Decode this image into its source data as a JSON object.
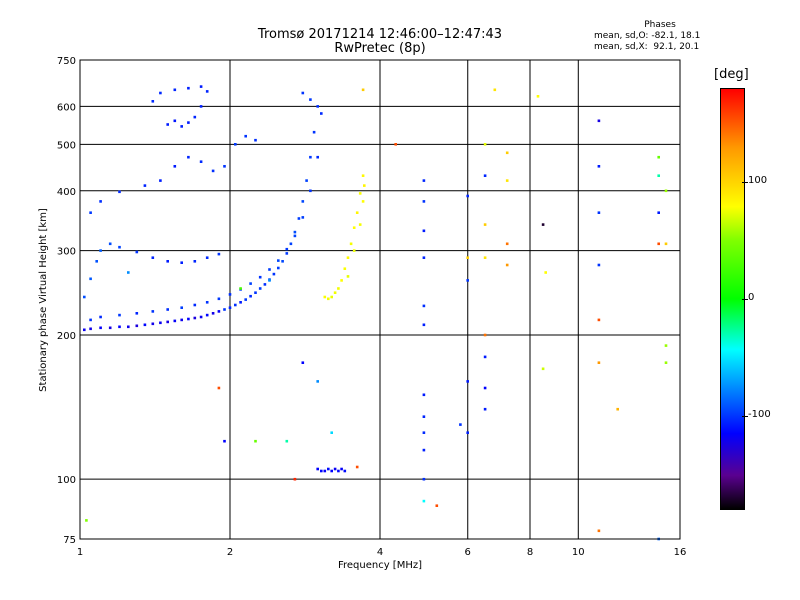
{
  "header": {
    "title_line1": "Tromsø 20171214 12:46:00–12:47:43",
    "title_line2": "RwPretec (8p)",
    "phases_label": "Phases",
    "stats_o": "mean, sd,O: -82.1, 18.1",
    "stats_x": "mean, sd,X:  92.1, 20.1"
  },
  "colorbar": {
    "unit": "[deg]",
    "ticks": [
      "100",
      "0",
      "-100"
    ],
    "tick_values": [
      100,
      0,
      -100
    ],
    "range": [
      -180,
      180
    ]
  },
  "chart_data": {
    "type": "scatter",
    "title": "Tromsø 20171214 12:46:00–12:47:43",
    "subtitle": "RwPretec (8p)",
    "xlabel": "Frequency [MHz]",
    "ylabel": "Stationary phase Virtual Height [km]",
    "xscale": "log",
    "yscale": "log",
    "xlim": [
      1,
      16
    ],
    "ylim": [
      75,
      750
    ],
    "xticks": [
      1,
      2,
      4,
      6,
      8,
      10,
      16
    ],
    "xtick_labels": [
      "1",
      "2",
      "4",
      "6",
      "8",
      "10",
      "16"
    ],
    "yticks": [
      75,
      100,
      200,
      300,
      400,
      500,
      600,
      750
    ],
    "ytick_labels": [
      "75",
      "100",
      "200",
      "300",
      "400",
      "500",
      "600",
      "750"
    ],
    "grid": true,
    "color_by": "phase (deg)",
    "series": [
      {
        "points": [
          [
            1.02,
            205,
            -115
          ],
          [
            1.05,
            206,
            -118
          ],
          [
            1.1,
            207,
            -112
          ],
          [
            1.15,
            207,
            -120
          ],
          [
            1.2,
            208,
            -110
          ],
          [
            1.25,
            208,
            -116
          ],
          [
            1.3,
            209,
            -122
          ],
          [
            1.35,
            210,
            -108
          ],
          [
            1.4,
            211,
            -118
          ],
          [
            1.45,
            212,
            -114
          ],
          [
            1.5,
            213,
            -120
          ],
          [
            1.55,
            214,
            -112
          ],
          [
            1.6,
            215,
            -116
          ],
          [
            1.65,
            216,
            -110
          ],
          [
            1.7,
            217,
            -122
          ],
          [
            1.75,
            218,
            -114
          ],
          [
            1.8,
            220,
            -108
          ],
          [
            1.85,
            222,
            -118
          ],
          [
            1.9,
            224,
            -112
          ],
          [
            1.95,
            226,
            -90
          ],
          [
            2.0,
            228,
            -96
          ],
          [
            2.05,
            231,
            -92
          ],
          [
            2.1,
            234,
            -100
          ],
          [
            2.15,
            237,
            -88
          ],
          [
            2.2,
            241,
            -94
          ],
          [
            2.25,
            245,
            -90
          ],
          [
            2.3,
            250,
            -86
          ],
          [
            2.35,
            255,
            -92
          ],
          [
            2.4,
            261,
            -84
          ],
          [
            2.45,
            268,
            -90
          ],
          [
            2.5,
            276,
            -86
          ],
          [
            2.55,
            285,
            -82
          ],
          [
            2.6,
            296,
            -88
          ],
          [
            2.65,
            310,
            -84
          ],
          [
            2.7,
            328,
            -80
          ],
          [
            2.75,
            350,
            -86
          ],
          [
            2.8,
            380,
            -82
          ],
          [
            2.85,
            420,
            -84
          ],
          [
            2.9,
            470,
            -88
          ],
          [
            2.95,
            530,
            -90
          ],
          [
            1.05,
            215,
            -90
          ],
          [
            1.1,
            218,
            -94
          ],
          [
            1.2,
            220,
            -88
          ],
          [
            1.3,
            222,
            -96
          ],
          [
            1.4,
            224,
            -90
          ],
          [
            1.5,
            226,
            -92
          ],
          [
            1.6,
            228,
            -86
          ],
          [
            1.7,
            231,
            -94
          ],
          [
            1.8,
            234,
            -90
          ],
          [
            1.9,
            238,
            -88
          ],
          [
            2.0,
            243,
            -92
          ],
          [
            2.1,
            249,
            -86
          ],
          [
            2.2,
            256,
            -84
          ],
          [
            2.3,
            264,
            -90
          ],
          [
            2.4,
            274,
            -86
          ],
          [
            2.5,
            286,
            -82
          ],
          [
            2.6,
            302,
            -88
          ],
          [
            2.7,
            322,
            -84
          ],
          [
            2.8,
            352,
            -86
          ],
          [
            2.9,
            400,
            -90
          ],
          [
            3.0,
            470,
            -94
          ],
          [
            1.02,
            240,
            -80
          ],
          [
            1.05,
            262,
            -76
          ],
          [
            1.08,
            285,
            -78
          ],
          [
            1.1,
            300,
            -74
          ],
          [
            1.15,
            310,
            -80
          ],
          [
            1.2,
            305,
            -84
          ],
          [
            1.3,
            298,
            -90
          ],
          [
            1.4,
            290,
            -96
          ],
          [
            1.5,
            285,
            -100
          ],
          [
            1.6,
            283,
            -98
          ],
          [
            1.7,
            285,
            -96
          ],
          [
            1.8,
            290,
            -94
          ],
          [
            1.9,
            295,
            -90
          ],
          [
            1.05,
            360,
            -88
          ],
          [
            1.1,
            380,
            -92
          ],
          [
            1.2,
            398,
            -94
          ],
          [
            1.35,
            410,
            -96
          ],
          [
            1.45,
            420,
            -98
          ],
          [
            1.55,
            450,
            -100
          ],
          [
            1.65,
            470,
            -96
          ],
          [
            1.75,
            460,
            -94
          ],
          [
            1.85,
            440,
            -92
          ],
          [
            1.95,
            450,
            -90
          ],
          [
            2.05,
            500,
            -88
          ],
          [
            2.15,
            520,
            -90
          ],
          [
            2.25,
            510,
            -92
          ],
          [
            1.5,
            550,
            -100
          ],
          [
            1.55,
            560,
            -102
          ],
          [
            1.6,
            545,
            -98
          ],
          [
            1.65,
            555,
            -100
          ],
          [
            1.7,
            570,
            -96
          ],
          [
            1.75,
            600,
            -98
          ],
          [
            1.45,
            640,
            -94
          ],
          [
            1.55,
            650,
            -96
          ],
          [
            1.65,
            655,
            -98
          ],
          [
            1.75,
            660,
            -100
          ],
          [
            1.8,
            645,
            -96
          ],
          [
            1.4,
            615,
            -94
          ],
          [
            2.8,
            640,
            -90
          ],
          [
            2.9,
            620,
            -88
          ],
          [
            3.0,
            600,
            -92
          ],
          [
            3.05,
            580,
            -94
          ],
          [
            3.3,
            250,
            95
          ],
          [
            3.35,
            260,
            100
          ],
          [
            3.4,
            275,
            98
          ],
          [
            3.45,
            290,
            102
          ],
          [
            3.5,
            310,
            96
          ],
          [
            3.55,
            335,
            100
          ],
          [
            3.6,
            360,
            104
          ],
          [
            3.65,
            395,
            98
          ],
          [
            3.7,
            430,
            102
          ],
          [
            3.25,
            245,
            94
          ],
          [
            3.2,
            240,
            92
          ],
          [
            3.15,
            238,
            96
          ],
          [
            3.1,
            240,
            98
          ],
          [
            3.45,
            265,
            90
          ],
          [
            3.55,
            300,
            92
          ],
          [
            3.65,
            340,
            96
          ],
          [
            3.7,
            380,
            100
          ],
          [
            3.72,
            410,
            104
          ],
          [
            3.0,
            105,
            -110
          ],
          [
            3.05,
            104,
            -108
          ],
          [
            3.1,
            104,
            -112
          ],
          [
            3.15,
            105,
            -106
          ],
          [
            3.2,
            104,
            -110
          ],
          [
            3.25,
            105,
            -114
          ],
          [
            3.3,
            104,
            -108
          ],
          [
            3.35,
            105,
            -112
          ],
          [
            3.4,
            104,
            -106
          ],
          [
            3.6,
            106,
            160
          ],
          [
            4.9,
            420,
            -95
          ],
          [
            4.9,
            380,
            -90
          ],
          [
            4.9,
            330,
            -100
          ],
          [
            4.9,
            290,
            -96
          ],
          [
            4.9,
            230,
            -92
          ],
          [
            4.9,
            210,
            -98
          ],
          [
            4.9,
            150,
            -100
          ],
          [
            4.9,
            135,
            -96
          ],
          [
            4.9,
            125,
            -94
          ],
          [
            4.9,
            115,
            -98
          ],
          [
            4.9,
            100,
            -92
          ],
          [
            4.9,
            90,
            -30
          ],
          [
            6.0,
            390,
            -95
          ],
          [
            6.0,
            290,
            120
          ],
          [
            6.0,
            260,
            -90
          ],
          [
            6.0,
            160,
            -100
          ],
          [
            6.0,
            125,
            -98
          ],
          [
            5.8,
            130,
            -90
          ],
          [
            6.5,
            500,
            90
          ],
          [
            6.5,
            430,
            -95
          ],
          [
            6.5,
            340,
            120
          ],
          [
            6.5,
            290,
            110
          ],
          [
            6.5,
            200,
            150
          ],
          [
            6.5,
            180,
            -100
          ],
          [
            6.5,
            155,
            -110
          ],
          [
            6.5,
            140,
            -100
          ],
          [
            7.2,
            480,
            120
          ],
          [
            7.2,
            420,
            110
          ],
          [
            7.2,
            310,
            150
          ],
          [
            7.2,
            280,
            140
          ],
          [
            8.5,
            340,
            -170
          ],
          [
            8.6,
            270,
            100
          ],
          [
            8.5,
            170,
            80
          ],
          [
            11.0,
            560,
            -120
          ],
          [
            11.0,
            450,
            -100
          ],
          [
            11.0,
            360,
            -90
          ],
          [
            11.0,
            280,
            -90
          ],
          [
            11.0,
            215,
            160
          ],
          [
            11.0,
            175,
            140
          ],
          [
            11.0,
            78,
            150
          ],
          [
            14.5,
            470,
            40
          ],
          [
            14.5,
            430,
            -20
          ],
          [
            14.5,
            360,
            -100
          ],
          [
            14.5,
            310,
            160
          ],
          [
            15.0,
            400,
            60
          ],
          [
            15.0,
            310,
            120
          ],
          [
            15.0,
            190,
            60
          ],
          [
            15.0,
            175,
            60
          ],
          [
            6.8,
            650,
            110
          ],
          [
            8.3,
            630,
            100
          ],
          [
            4.3,
            500,
            160
          ],
          [
            3.7,
            650,
            120
          ],
          [
            2.1,
            250,
            30
          ],
          [
            2.4,
            260,
            -60
          ],
          [
            1.25,
            270,
            -60
          ],
          [
            1.9,
            155,
            160
          ],
          [
            1.95,
            120,
            -110
          ],
          [
            2.25,
            120,
            40
          ],
          [
            2.6,
            120,
            -20
          ],
          [
            2.7,
            100,
            170
          ],
          [
            3.0,
            160,
            -60
          ],
          [
            2.8,
            175,
            -110
          ],
          [
            3.2,
            125,
            -40
          ],
          [
            5.2,
            88,
            160
          ],
          [
            12.0,
            140,
            130
          ],
          [
            1.03,
            82,
            50
          ],
          [
            14.5,
            75,
            -70
          ]
        ]
      }
    ]
  }
}
